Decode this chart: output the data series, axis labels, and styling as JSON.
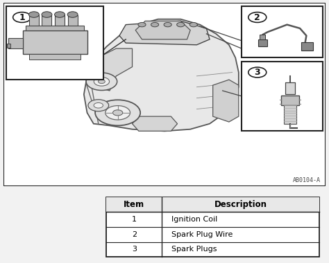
{
  "table_headers": [
    "Item",
    "Description"
  ],
  "table_rows": [
    [
      "1",
      "Ignition Coil"
    ],
    [
      "2",
      "Spark Plug Wire"
    ],
    [
      "3",
      "Spark Plugs"
    ]
  ],
  "bg_color": "#f2f2f2",
  "diagram_bg": "#ffffff",
  "table_bg": "#ffffff",
  "header_bg": "#e8e8e8",
  "border_color": "#222222",
  "text_color": "#111111",
  "watermark": "AB0104-A",
  "font_size_header": 8.5,
  "font_size_body": 8.0,
  "label_fontsize": 9
}
